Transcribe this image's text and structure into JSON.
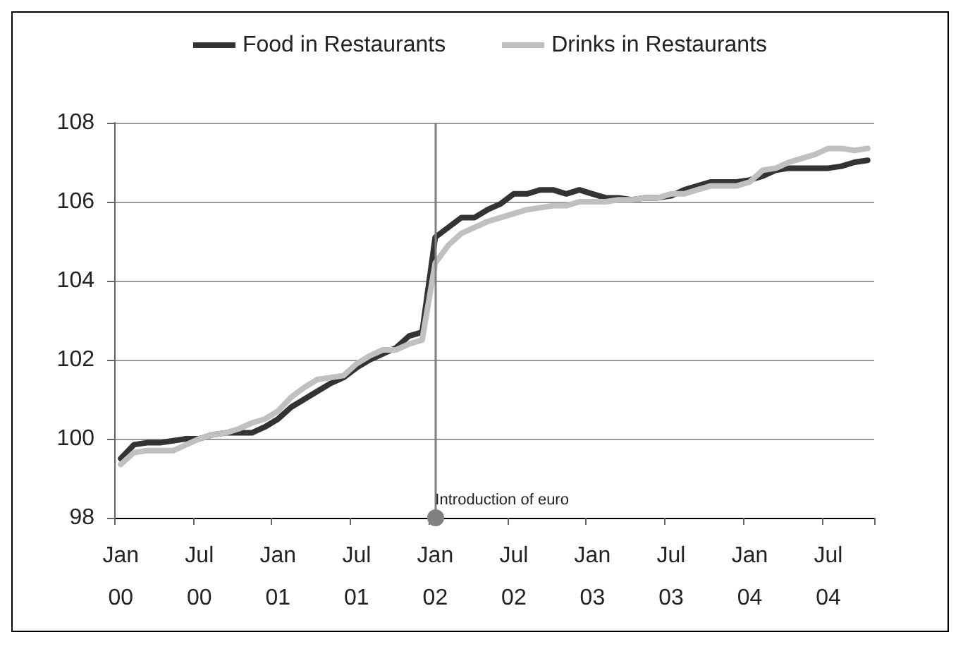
{
  "chart_data": {
    "type": "line",
    "categories": [
      "Jan 00",
      null,
      null,
      null,
      null,
      null,
      "Jul 00",
      null,
      null,
      null,
      null,
      null,
      "Jan 01",
      null,
      null,
      null,
      null,
      null,
      "Jul 01",
      null,
      null,
      null,
      null,
      null,
      "Jan 02",
      null,
      null,
      null,
      null,
      null,
      "Jul 02",
      null,
      null,
      null,
      null,
      null,
      "Jan 03",
      null,
      null,
      null,
      null,
      null,
      "Jul 03",
      null,
      null,
      null,
      null,
      null,
      "Jan 04",
      null,
      null,
      null,
      null,
      null,
      "Jul 04",
      null,
      null,
      null
    ],
    "series": [
      {
        "name": "Food in Restaurants",
        "color": "#333333",
        "values": [
          99.5,
          99.85,
          99.9,
          99.9,
          99.95,
          100.0,
          100.0,
          100.1,
          100.15,
          100.15,
          100.15,
          100.3,
          100.5,
          100.8,
          101.0,
          101.2,
          101.4,
          101.55,
          101.8,
          102.0,
          102.15,
          102.3,
          102.6,
          102.7,
          105.1,
          105.35,
          105.6,
          105.6,
          105.8,
          105.95,
          106.2,
          106.2,
          106.3,
          106.3,
          106.2,
          106.3,
          106.2,
          106.1,
          106.1,
          106.05,
          106.1,
          106.1,
          106.15,
          106.3,
          106.4,
          106.5,
          106.5,
          106.5,
          106.55,
          106.65,
          106.8,
          106.85,
          106.85,
          106.85,
          106.85,
          106.9,
          107.0,
          107.05
        ]
      },
      {
        "name": "Drinks in Restaurants",
        "color": "#c0c0c0",
        "values": [
          99.35,
          99.65,
          99.7,
          99.7,
          99.7,
          99.85,
          100.0,
          100.1,
          100.15,
          100.25,
          100.4,
          100.5,
          100.7,
          101.05,
          101.3,
          101.5,
          101.55,
          101.6,
          101.9,
          102.1,
          102.25,
          102.25,
          102.4,
          102.5,
          104.45,
          104.9,
          105.2,
          105.35,
          105.5,
          105.6,
          105.7,
          105.8,
          105.85,
          105.9,
          105.9,
          106.0,
          106.0,
          106.0,
          106.05,
          106.05,
          106.1,
          106.1,
          106.2,
          106.2,
          106.3,
          106.4,
          106.4,
          106.4,
          106.5,
          106.8,
          106.85,
          107.0,
          107.1,
          107.2,
          107.35,
          107.35,
          107.3,
          107.35
        ]
      }
    ],
    "ylim": [
      98,
      108
    ],
    "yticks": [
      98,
      100,
      102,
      104,
      106,
      108
    ],
    "ref_lines": [
      {
        "axis": "x",
        "value": "Jan 02",
        "label": "Introduction of euro",
        "color": "#808080"
      }
    ],
    "grid": "y",
    "legend": "top",
    "marker": "none",
    "line_style": "solid"
  }
}
